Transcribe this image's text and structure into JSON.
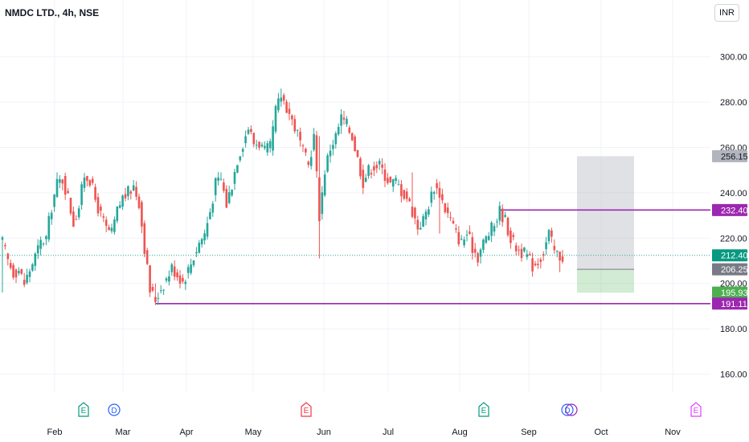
{
  "header": {
    "symbol_title": "NMDC LTD., 4h, NSE",
    "currency": "INR"
  },
  "colors": {
    "up": "#26a69a",
    "down": "#ef5350",
    "purple": "#9c27b0",
    "grid": "#f0f3fa"
  },
  "chart_data": {
    "type": "candlestick",
    "symbol": "NMDC LTD.",
    "interval": "4h",
    "exchange": "NSE",
    "currency": "INR",
    "x_tick_labels": [
      "Feb",
      "Mar",
      "Apr",
      "May",
      "Jun",
      "Jul",
      "Aug",
      "Sep",
      "Oct",
      "Nov"
    ],
    "y_ticks": [
      160,
      180,
      200,
      220,
      240,
      260,
      280,
      300
    ],
    "y_tick_labels": [
      "160.00",
      "180.00",
      "200.00",
      "220.00",
      "240.00",
      "260.00",
      "280.00",
      "300.00"
    ],
    "ylim": [
      150,
      312
    ],
    "price_path": [
      [
        0,
        218
      ],
      [
        1,
        210
      ],
      [
        2,
        205
      ],
      [
        3,
        206
      ],
      [
        4,
        200
      ],
      [
        5,
        206
      ],
      [
        6,
        212
      ],
      [
        7,
        218
      ],
      [
        8,
        220
      ],
      [
        9,
        234
      ],
      [
        10,
        244
      ],
      [
        11,
        246
      ],
      [
        12,
        238
      ],
      [
        13,
        227
      ],
      [
        14,
        234
      ],
      [
        15,
        248
      ],
      [
        16,
        246
      ],
      [
        17,
        237
      ],
      [
        18,
        230
      ],
      [
        19,
        224
      ],
      [
        20,
        222
      ],
      [
        21,
        232
      ],
      [
        22,
        238
      ],
      [
        23,
        240
      ],
      [
        24,
        243
      ],
      [
        25,
        236
      ],
      [
        26,
        216
      ],
      [
        27,
        197
      ],
      [
        28,
        193
      ],
      [
        29,
        198
      ],
      [
        30,
        202
      ],
      [
        31,
        207
      ],
      [
        32,
        204
      ],
      [
        33,
        201
      ],
      [
        34,
        206
      ],
      [
        35,
        212
      ],
      [
        36,
        218
      ],
      [
        37,
        222
      ],
      [
        38,
        232
      ],
      [
        39,
        244
      ],
      [
        40,
        246
      ],
      [
        41,
        235
      ],
      [
        42,
        244
      ],
      [
        43,
        255
      ],
      [
        44,
        262
      ],
      [
        45,
        269
      ],
      [
        46,
        262
      ],
      [
        47,
        262
      ],
      [
        48,
        258
      ],
      [
        49,
        260
      ],
      [
        50,
        276
      ],
      [
        51,
        283
      ],
      [
        52,
        278
      ],
      [
        53,
        272
      ],
      [
        54,
        266
      ],
      [
        55,
        258
      ],
      [
        56,
        252
      ],
      [
        57,
        265
      ],
      [
        58,
        230
      ],
      [
        59,
        250
      ],
      [
        60,
        260
      ],
      [
        61,
        265
      ],
      [
        62,
        273
      ],
      [
        63,
        270
      ],
      [
        64,
        265
      ],
      [
        65,
        255
      ],
      [
        66,
        245
      ],
      [
        67,
        250
      ],
      [
        68,
        252
      ],
      [
        69,
        252
      ],
      [
        70,
        248
      ],
      [
        71,
        244
      ],
      [
        72,
        245
      ],
      [
        73,
        241
      ],
      [
        74,
        238
      ],
      [
        75,
        232
      ],
      [
        76,
        225
      ],
      [
        77,
        228
      ],
      [
        78,
        235
      ],
      [
        79,
        243
      ],
      [
        80,
        240
      ],
      [
        81,
        233
      ],
      [
        82,
        228
      ],
      [
        83,
        222
      ],
      [
        84,
        218
      ],
      [
        85,
        222
      ],
      [
        86,
        216
      ],
      [
        87,
        212
      ],
      [
        88,
        218
      ],
      [
        89,
        222
      ],
      [
        90,
        226
      ],
      [
        91,
        232
      ],
      [
        92,
        228
      ],
      [
        93,
        220
      ],
      [
        94,
        216
      ],
      [
        95,
        214
      ],
      [
        96,
        212
      ],
      [
        97,
        208
      ],
      [
        98,
        210
      ],
      [
        99,
        214
      ],
      [
        100,
        222
      ],
      [
        101,
        214
      ],
      [
        102,
        212
      ]
    ],
    "wick_extremes": [
      {
        "index": 0,
        "low": 196,
        "high": 221
      },
      {
        "index": 28,
        "low": 191.11,
        "high": 200
      },
      {
        "index": 51,
        "low": 278,
        "high": 286
      },
      {
        "index": 58,
        "low": 211,
        "high": 265
      },
      {
        "index": 62,
        "low": 266,
        "high": 275
      },
      {
        "index": 75,
        "low": 230,
        "high": 249
      },
      {
        "index": 80,
        "low": 222,
        "high": 242
      },
      {
        "index": 91,
        "low": 226,
        "high": 233
      },
      {
        "index": 102,
        "low": 205,
        "high": 214
      }
    ],
    "last_close": 212.4,
    "horizontal_lines": [
      {
        "label": "232.40",
        "value": 232.4,
        "color": "#9c27b0",
        "start_index": 91
      },
      {
        "label": "191.11",
        "value": 191.11,
        "color": "#9c27b0",
        "start_index": 28
      }
    ],
    "position_tool": {
      "start_index": 103,
      "target": 256.15,
      "entry": 206.25,
      "stop": 195.93
    },
    "price_labels": [
      {
        "text": "256.15",
        "value": 256.15,
        "bg": "#b2b5be",
        "fg": "dark"
      },
      {
        "text": "232.40",
        "value": 232.4,
        "bg": "#9c27b0",
        "fg": "light"
      },
      {
        "text": "212.40",
        "value": 212.4,
        "bg": "#089981",
        "fg": "light"
      },
      {
        "text": "206.25",
        "value": 206.25,
        "bg": "#787b86",
        "fg": "light"
      },
      {
        "text": "195.93",
        "value": 195.93,
        "bg": "#4caf50",
        "fg": "light"
      },
      {
        "text": "191.11",
        "value": 191.11,
        "bg": "#9c27b0",
        "fg": "light"
      }
    ],
    "events": [
      {
        "letter": "E",
        "kind": "earnings",
        "color": "#089981"
      },
      {
        "letter": "D",
        "kind": "dividend",
        "color": "#2962ff"
      },
      {
        "letter": "E",
        "kind": "earnings",
        "color": "#f23645"
      },
      {
        "letter": "E",
        "kind": "earnings",
        "color": "#089981"
      },
      {
        "letter": "D",
        "kind": "dividend",
        "color": "#2962ff"
      },
      {
        "letter": "E",
        "kind": "earnings",
        "color": "#e040fb"
      }
    ]
  }
}
